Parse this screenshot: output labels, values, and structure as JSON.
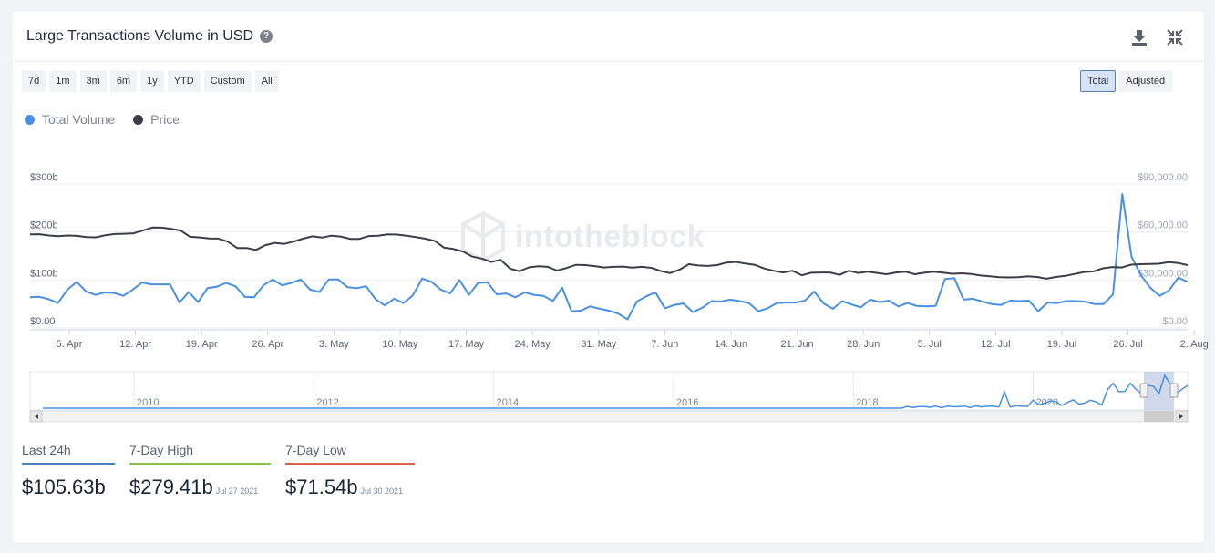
{
  "header": {
    "title": "Large Transactions Volume in USD",
    "help_icon": "question-circle-icon",
    "download_icon": "download-icon",
    "collapse_icon": "collapse-icon"
  },
  "range_buttons": [
    "7d",
    "1m",
    "3m",
    "6m",
    "1y",
    "YTD",
    "Custom",
    "All"
  ],
  "mode_buttons": [
    "Total",
    "Adjusted"
  ],
  "active_mode": "Total",
  "legend": [
    {
      "name": "Total Volume",
      "color": "#4a90e2"
    },
    {
      "name": "Price",
      "color": "#3a3f47"
    }
  ],
  "watermark": "intotheblock",
  "stats": [
    {
      "label": "Last 24h",
      "value": "$105.63b",
      "date": "",
      "color": "#4a7fc1"
    },
    {
      "label": "7-Day High",
      "value": "$279.41b",
      "date": "Jul 27 2021",
      "color": "#8bc34a"
    },
    {
      "label": "7-Day Low",
      "value": "$71.54b",
      "date": "Jul 30 2021",
      "color": "#e06050"
    }
  ],
  "chart_data": {
    "type": "line",
    "x_ticks": [
      "5. Apr",
      "12. Apr",
      "19. Apr",
      "26. Apr",
      "3. May",
      "10. May",
      "17. May",
      "24. May",
      "31. May",
      "7. Jun",
      "14. Jun",
      "21. Jun",
      "28. Jun",
      "5. Jul",
      "12. Jul",
      "19. Jul",
      "26. Jul",
      "2. Aug"
    ],
    "y_left_ticks": [
      "$0.00",
      "$100b",
      "$200b",
      "$300b"
    ],
    "y_right_ticks": [
      "$0.00",
      "$30,000.00",
      "$60,000.00",
      "$90,000.00"
    ],
    "y_left_range": [
      0,
      300
    ],
    "y_right_range": [
      0,
      90000
    ],
    "series": [
      {
        "name": "Total Volume",
        "color": "#4a90e2",
        "axis": "left",
        "unit": "billion USD",
        "values": [
          64,
          65,
          60,
          52,
          80,
          96,
          76,
          69,
          74,
          73,
          67,
          80,
          95,
          91,
          91,
          91,
          53,
          75,
          54,
          83,
          86,
          94,
          87,
          65,
          64,
          89,
          101,
          89,
          94,
          101,
          80,
          75,
          101,
          101,
          85,
          83,
          87,
          60,
          47,
          61,
          52,
          68,
          103,
          96,
          80,
          72,
          100,
          69,
          94,
          95,
          70,
          72,
          64,
          74,
          69,
          67,
          56,
          84,
          35,
          36,
          45,
          40,
          36,
          30,
          18,
          55,
          66,
          74,
          41,
          48,
          51,
          33,
          42,
          56,
          55,
          59,
          56,
          52,
          35,
          41,
          52,
          53,
          53,
          57,
          76,
          51,
          40,
          56,
          49,
          43,
          59,
          54,
          57,
          45,
          52,
          46,
          45,
          46,
          102,
          104,
          59,
          61,
          55,
          50,
          48,
          57,
          56,
          57,
          35,
          53,
          52,
          56,
          56,
          55,
          50,
          50,
          70,
          279,
          148,
          110,
          84,
          67,
          78,
          105,
          96
        ]
      },
      {
        "name": "Price",
        "color": "#3a3f47",
        "axis": "right",
        "unit": "USD",
        "values": [
          58500,
          58600,
          57800,
          57400,
          57800,
          57600,
          56800,
          56700,
          58000,
          58700,
          58900,
          59200,
          61000,
          62800,
          62700,
          62000,
          60900,
          57000,
          56600,
          56000,
          55900,
          54000,
          50000,
          50000,
          48800,
          51800,
          53200,
          52600,
          54000,
          55800,
          57300,
          56500,
          57700,
          57200,
          55700,
          55700,
          57500,
          57700,
          58500,
          58400,
          57700,
          56800,
          55800,
          54400,
          50200,
          49400,
          47800,
          44600,
          43400,
          41300,
          42600,
          37100,
          35500,
          37900,
          38600,
          38200,
          35900,
          37500,
          39500,
          39300,
          38700,
          37800,
          38200,
          38400,
          37700,
          38200,
          37600,
          35600,
          34300,
          36400,
          39900,
          39100,
          38800,
          39300,
          40900,
          41300,
          40300,
          39500,
          37200,
          35800,
          34700,
          35800,
          33000,
          34500,
          34700,
          34700,
          33200,
          35800,
          34400,
          35200,
          34400,
          33600,
          34700,
          35200,
          33600,
          34500,
          35200,
          34600,
          33900,
          34200,
          33800,
          32800,
          32300,
          31800,
          31600,
          31700,
          32300,
          31900,
          30800,
          31900,
          32600,
          33800,
          35000,
          35400,
          37300,
          38100,
          37800,
          39600,
          39900,
          40000,
          40200,
          41100,
          40600,
          39300
        ]
      }
    ],
    "navigator_ticks": [
      "2010",
      "2012",
      "2014",
      "2016",
      "2018",
      "2020"
    ],
    "grid": true
  }
}
